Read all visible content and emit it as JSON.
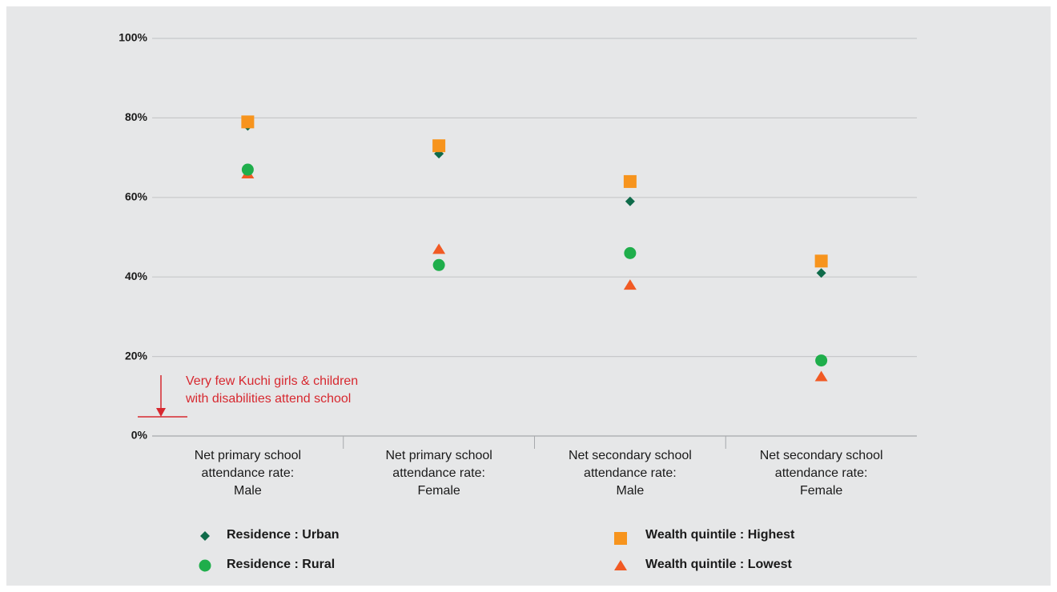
{
  "chart_data": {
    "type": "dot",
    "categories": [
      [
        "Net primary school",
        "attendance rate:",
        "Male"
      ],
      [
        "Net primary school",
        "attendance rate:",
        "Female"
      ],
      [
        "Net secondary school",
        "attendance rate:",
        "Male"
      ],
      [
        "Net secondary school",
        "attendance rate:",
        "Female"
      ]
    ],
    "series": [
      {
        "name": "Residence : Urban",
        "color": "#0f6b4a",
        "marker": "diamond",
        "values": [
          78,
          71,
          59,
          41
        ]
      },
      {
        "name": "Residence : Rural",
        "color": "#1fae4b",
        "marker": "circle",
        "values": [
          67,
          43,
          46,
          19
        ]
      },
      {
        "name": "Wealth quintile : Highest",
        "color": "#f7941d",
        "marker": "square",
        "values": [
          79,
          73,
          64,
          44
        ]
      },
      {
        "name": "Wealth quintile : Lowest",
        "color": "#f15a24",
        "marker": "triangle",
        "values": [
          66,
          47,
          38,
          15
        ]
      }
    ],
    "ylim": [
      0,
      100
    ],
    "yticks": [
      {
        "value": 0,
        "label": "0%"
      },
      {
        "value": 20,
        "label": "20%"
      },
      {
        "value": 40,
        "label": "40%"
      },
      {
        "value": 60,
        "label": "60%"
      },
      {
        "value": 80,
        "label": "80%"
      },
      {
        "value": 100,
        "label": "100%"
      }
    ],
    "grid": true,
    "annotation": [
      "Very few Kuchi girls & children",
      "with disabilities attend school"
    ],
    "annotation_color": "#d7282f"
  }
}
